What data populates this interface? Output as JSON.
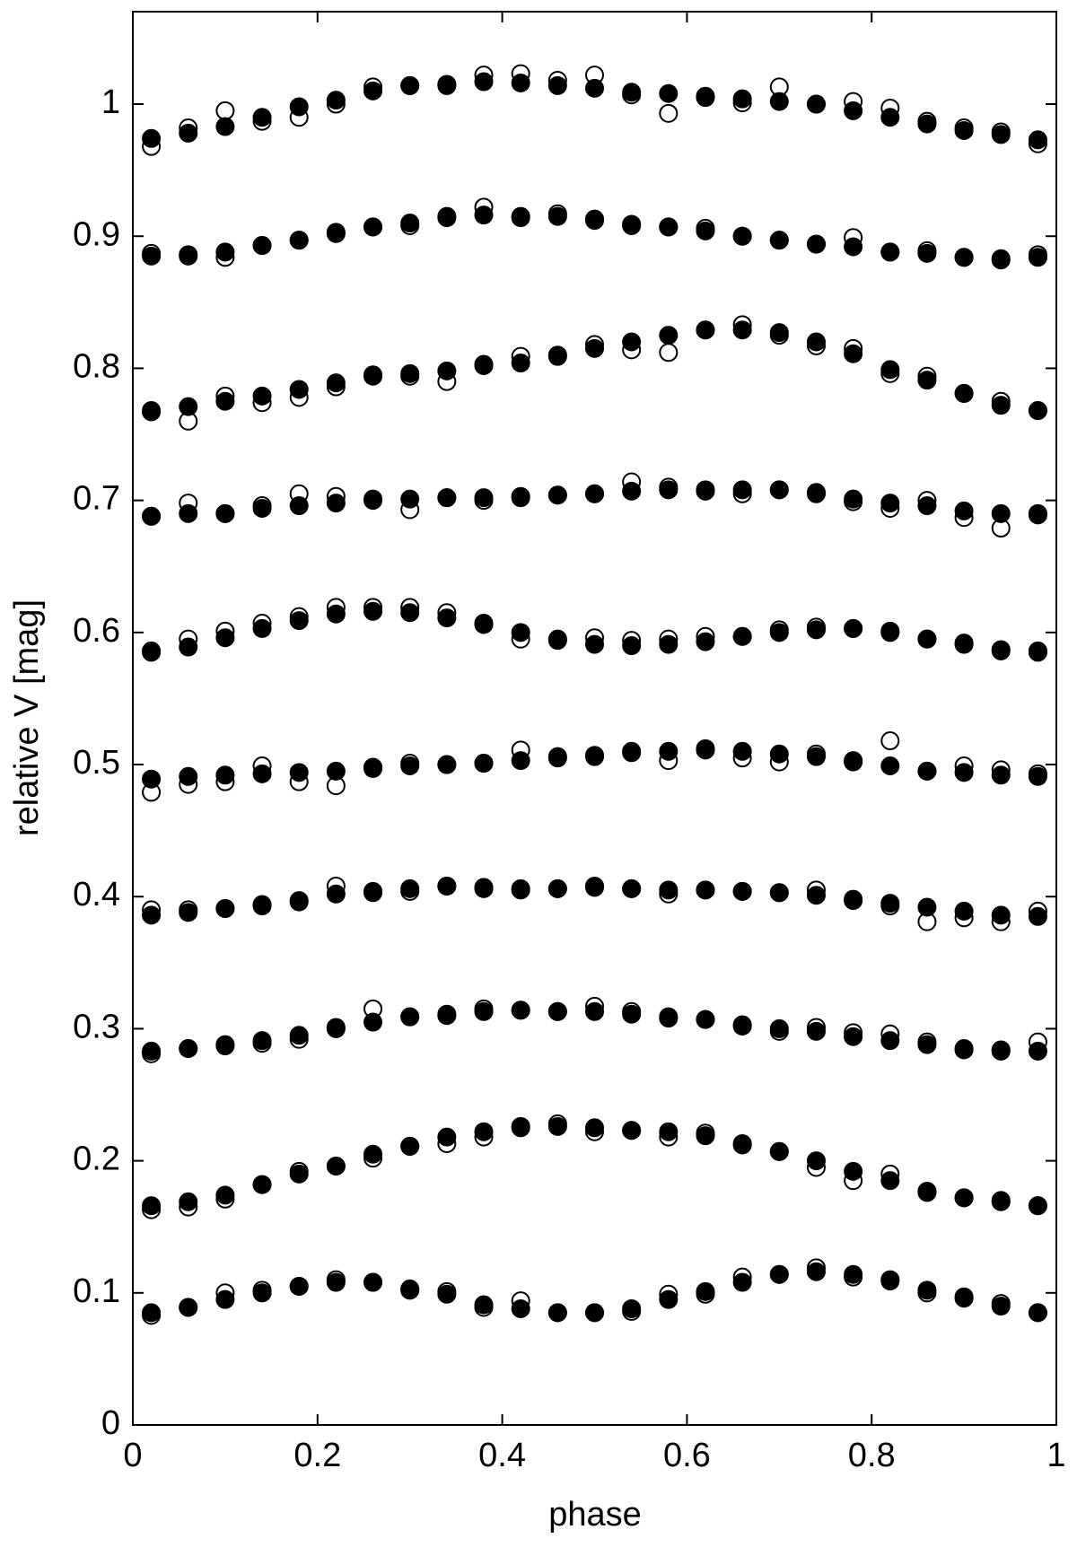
{
  "chart_data": {
    "type": "scatter",
    "x_label": "phase",
    "y_label": "relative V [mag]",
    "xlim": [
      0,
      1
    ],
    "ylim": [
      0,
      1.07
    ],
    "xticks": [
      0,
      0.2,
      0.4,
      0.6,
      0.8,
      1
    ],
    "yticks": [
      0,
      0.1,
      0.2,
      0.3,
      0.4,
      0.5,
      0.6,
      0.7,
      0.8,
      0.9,
      1
    ],
    "grid": false,
    "x": [
      0.02,
      0.06,
      0.1,
      0.14,
      0.18,
      0.22,
      0.26,
      0.3,
      0.34,
      0.38,
      0.42,
      0.46,
      0.5,
      0.54,
      0.58,
      0.62,
      0.66,
      0.7,
      0.74,
      0.78,
      0.82,
      0.86,
      0.9,
      0.94,
      0.98
    ],
    "series": [
      {
        "marker": "open",
        "color": "#000000",
        "values": [
          0.968,
          0.982,
          0.995,
          0.987,
          0.99,
          1.0,
          1.013,
          1.014,
          1.014,
          1.022,
          1.023,
          1.018,
          1.022,
          1.007,
          0.993,
          1.005,
          1.001,
          1.013,
          1.0,
          1.002,
          0.997,
          0.987,
          0.982,
          0.979,
          0.97
        ]
      },
      {
        "marker": "filled",
        "color": "#000000",
        "values": [
          0.974,
          0.978,
          0.983,
          0.99,
          0.998,
          1.003,
          1.01,
          1.014,
          1.015,
          1.017,
          1.016,
          1.014,
          1.012,
          1.009,
          1.008,
          1.006,
          1.004,
          1.002,
          1.0,
          0.995,
          0.99,
          0.985,
          0.98,
          0.977,
          0.973
        ]
      },
      {
        "marker": "open",
        "color": "#000000",
        "values": [
          0.887,
          0.886,
          0.884,
          0.893,
          0.897,
          0.903,
          0.907,
          0.908,
          0.915,
          0.922,
          0.914,
          0.917,
          0.912,
          0.908,
          0.907,
          0.906,
          0.9,
          0.897,
          0.894,
          0.899,
          0.888,
          0.889,
          0.884,
          0.882,
          0.886
        ]
      },
      {
        "marker": "filled",
        "color": "#000000",
        "values": [
          0.885,
          0.885,
          0.888,
          0.893,
          0.897,
          0.902,
          0.907,
          0.91,
          0.914,
          0.916,
          0.915,
          0.915,
          0.913,
          0.909,
          0.907,
          0.904,
          0.9,
          0.897,
          0.894,
          0.892,
          0.888,
          0.887,
          0.884,
          0.883,
          0.884
        ]
      },
      {
        "marker": "open",
        "color": "#000000",
        "values": [
          0.768,
          0.76,
          0.779,
          0.774,
          0.778,
          0.786,
          0.795,
          0.794,
          0.79,
          0.803,
          0.809,
          0.81,
          0.818,
          0.814,
          0.812,
          0.829,
          0.833,
          0.825,
          0.817,
          0.815,
          0.796,
          0.794,
          0.781,
          0.775,
          0.768
        ]
      },
      {
        "marker": "filled",
        "color": "#000000",
        "values": [
          0.767,
          0.771,
          0.775,
          0.779,
          0.784,
          0.789,
          0.794,
          0.796,
          0.798,
          0.802,
          0.804,
          0.809,
          0.815,
          0.82,
          0.825,
          0.829,
          0.829,
          0.827,
          0.82,
          0.811,
          0.799,
          0.791,
          0.781,
          0.772,
          0.768
        ]
      },
      {
        "marker": "open",
        "color": "#000000",
        "values": [
          0.688,
          0.698,
          0.69,
          0.696,
          0.705,
          0.703,
          0.701,
          0.693,
          0.702,
          0.7,
          0.702,
          0.704,
          0.705,
          0.714,
          0.71,
          0.707,
          0.705,
          0.708,
          0.706,
          0.699,
          0.694,
          0.7,
          0.687,
          0.679,
          0.69
        ]
      },
      {
        "marker": "filled",
        "color": "#000000",
        "values": [
          0.688,
          0.69,
          0.69,
          0.694,
          0.696,
          0.698,
          0.7,
          0.701,
          0.702,
          0.702,
          0.703,
          0.704,
          0.705,
          0.707,
          0.708,
          0.708,
          0.708,
          0.708,
          0.705,
          0.701,
          0.698,
          0.696,
          0.692,
          0.69,
          0.689
        ]
      },
      {
        "marker": "open",
        "color": "#000000",
        "values": [
          0.586,
          0.595,
          0.601,
          0.607,
          0.612,
          0.619,
          0.619,
          0.619,
          0.615,
          0.607,
          0.595,
          0.595,
          0.596,
          0.594,
          0.595,
          0.597,
          0.597,
          0.602,
          0.604,
          0.603,
          0.601,
          0.595,
          0.592,
          0.586,
          0.586
        ]
      },
      {
        "marker": "filled",
        "color": "#000000",
        "values": [
          0.585,
          0.589,
          0.596,
          0.603,
          0.609,
          0.614,
          0.616,
          0.615,
          0.611,
          0.606,
          0.6,
          0.594,
          0.591,
          0.59,
          0.591,
          0.593,
          0.597,
          0.6,
          0.602,
          0.603,
          0.6,
          0.595,
          0.591,
          0.587,
          0.585
        ]
      },
      {
        "marker": "open",
        "color": "#000000",
        "values": [
          0.479,
          0.485,
          0.487,
          0.499,
          0.487,
          0.484,
          0.498,
          0.501,
          0.5,
          0.501,
          0.511,
          0.506,
          0.507,
          0.51,
          0.503,
          0.511,
          0.505,
          0.502,
          0.508,
          0.503,
          0.518,
          0.495,
          0.499,
          0.496,
          0.493
        ]
      },
      {
        "marker": "filled",
        "color": "#000000",
        "values": [
          0.489,
          0.491,
          0.492,
          0.493,
          0.494,
          0.495,
          0.497,
          0.499,
          0.5,
          0.501,
          0.503,
          0.505,
          0.506,
          0.509,
          0.51,
          0.512,
          0.51,
          0.508,
          0.506,
          0.502,
          0.499,
          0.495,
          0.494,
          0.492,
          0.491
        ]
      },
      {
        "marker": "open",
        "color": "#000000",
        "values": [
          0.39,
          0.39,
          0.391,
          0.393,
          0.396,
          0.408,
          0.403,
          0.404,
          0.408,
          0.406,
          0.405,
          0.406,
          0.408,
          0.406,
          0.402,
          0.405,
          0.404,
          0.403,
          0.405,
          0.397,
          0.393,
          0.381,
          0.384,
          0.381,
          0.389
        ]
      },
      {
        "marker": "filled",
        "color": "#000000",
        "values": [
          0.386,
          0.388,
          0.391,
          0.394,
          0.397,
          0.402,
          0.404,
          0.406,
          0.408,
          0.407,
          0.406,
          0.406,
          0.407,
          0.406,
          0.405,
          0.405,
          0.404,
          0.403,
          0.401,
          0.398,
          0.395,
          0.392,
          0.389,
          0.386,
          0.385
        ]
      },
      {
        "marker": "open",
        "color": "#000000",
        "values": [
          0.281,
          0.285,
          0.287,
          0.289,
          0.292,
          0.301,
          0.315,
          0.309,
          0.31,
          0.315,
          0.314,
          0.313,
          0.317,
          0.313,
          0.308,
          0.307,
          0.302,
          0.298,
          0.301,
          0.297,
          0.296,
          0.29,
          0.284,
          0.283,
          0.29
        ]
      },
      {
        "marker": "filled",
        "color": "#000000",
        "values": [
          0.283,
          0.285,
          0.288,
          0.291,
          0.295,
          0.3,
          0.305,
          0.309,
          0.311,
          0.313,
          0.314,
          0.313,
          0.313,
          0.311,
          0.309,
          0.307,
          0.303,
          0.3,
          0.298,
          0.294,
          0.291,
          0.288,
          0.285,
          0.284,
          0.283
        ]
      },
      {
        "marker": "open",
        "color": "#000000",
        "values": [
          0.163,
          0.165,
          0.171,
          0.182,
          0.192,
          0.196,
          0.202,
          0.211,
          0.213,
          0.218,
          0.226,
          0.228,
          0.222,
          0.223,
          0.218,
          0.221,
          0.212,
          0.207,
          0.195,
          0.185,
          0.19,
          0.176,
          0.172,
          0.17,
          0.166
        ]
      },
      {
        "marker": "filled",
        "color": "#000000",
        "values": [
          0.166,
          0.169,
          0.174,
          0.182,
          0.19,
          0.196,
          0.205,
          0.211,
          0.218,
          0.222,
          0.225,
          0.226,
          0.225,
          0.223,
          0.222,
          0.219,
          0.213,
          0.207,
          0.2,
          0.192,
          0.185,
          0.177,
          0.172,
          0.169,
          0.166
        ]
      },
      {
        "marker": "open",
        "color": "#000000",
        "values": [
          0.083,
          0.089,
          0.1,
          0.102,
          0.105,
          0.11,
          0.108,
          0.102,
          0.101,
          0.089,
          0.094,
          0.085,
          0.085,
          0.086,
          0.099,
          0.099,
          0.112,
          0.114,
          0.119,
          0.112,
          0.109,
          0.1,
          0.097,
          0.092,
          0.085
        ]
      },
      {
        "marker": "filled",
        "color": "#000000",
        "values": [
          0.085,
          0.089,
          0.095,
          0.1,
          0.105,
          0.108,
          0.108,
          0.103,
          0.099,
          0.091,
          0.088,
          0.085,
          0.085,
          0.088,
          0.095,
          0.101,
          0.108,
          0.114,
          0.116,
          0.114,
          0.11,
          0.102,
          0.096,
          0.09,
          0.085
        ]
      }
    ]
  }
}
